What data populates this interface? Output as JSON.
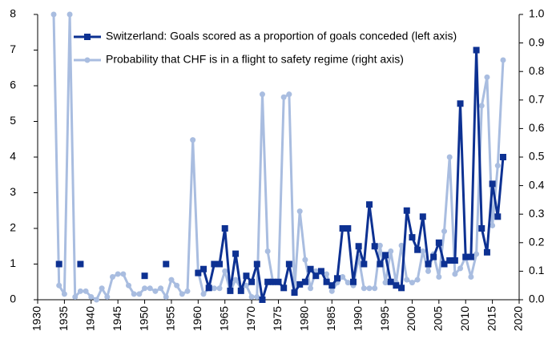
{
  "chart_data": {
    "type": "line",
    "x": [
      1933,
      1934,
      1935,
      1936,
      1937,
      1938,
      1939,
      1940,
      1941,
      1942,
      1943,
      1944,
      1945,
      1946,
      1947,
      1948,
      1949,
      1950,
      1951,
      1952,
      1953,
      1954,
      1955,
      1956,
      1957,
      1958,
      1959,
      1960,
      1961,
      1962,
      1963,
      1964,
      1965,
      1966,
      1967,
      1968,
      1969,
      1970,
      1971,
      1972,
      1973,
      1974,
      1975,
      1976,
      1977,
      1978,
      1979,
      1980,
      1981,
      1982,
      1983,
      1984,
      1985,
      1986,
      1987,
      1988,
      1989,
      1990,
      1991,
      1992,
      1993,
      1994,
      1995,
      1996,
      1997,
      1998,
      1999,
      2000,
      2001,
      2002,
      2003,
      2004,
      2005,
      2006,
      2007,
      2008,
      2009,
      2010,
      2011,
      2012,
      2013,
      2014,
      2015,
      2016,
      2017
    ],
    "series": [
      {
        "name": "Switzerland: Goals scored as a proportion of goals conceded (left axis)",
        "color": "#0d3192",
        "marker": "square",
        "values": [
          null,
          1,
          null,
          null,
          null,
          1,
          null,
          null,
          null,
          null,
          null,
          null,
          null,
          null,
          null,
          null,
          null,
          0.67,
          null,
          null,
          null,
          1,
          null,
          null,
          null,
          null,
          null,
          0.75,
          0.86,
          0.33,
          1,
          1,
          2,
          0.25,
          1.29,
          0.25,
          0.67,
          0.5,
          1,
          0,
          0.5,
          0.5,
          0.5,
          0.33,
          1,
          0.2,
          0.43,
          0.5,
          0.86,
          0.67,
          0.8,
          0.5,
          0.4,
          0.6,
          2,
          2,
          0.5,
          1.5,
          1,
          2.67,
          1.5,
          1,
          1.25,
          0.5,
          0.4,
          0.33,
          2.5,
          1.75,
          1.4,
          2.33,
          1,
          1.2,
          1.6,
          1,
          1.1,
          1.1,
          5.5,
          1.2,
          1.2,
          7,
          2,
          1.33,
          3.25,
          2.33,
          4
        ]
      },
      {
        "name": "Probability that CHF is in a flight to safety regime (right axis)",
        "color": "#a9bde0",
        "marker": "circle",
        "axis": "y2",
        "values": [
          1.0,
          0.05,
          0.02,
          1.0,
          0.01,
          0.03,
          0.03,
          0.01,
          0,
          0.04,
          0.01,
          0.08,
          0.09,
          0.09,
          0.05,
          0.02,
          0.02,
          0.04,
          0.04,
          0.03,
          0.04,
          0.01,
          0.07,
          0.05,
          0.02,
          0.03,
          0.56,
          0.1,
          0.02,
          0.04,
          0.04,
          0.04,
          0.1,
          0.03,
          0.07,
          0.04,
          0.05,
          0.01,
          0.01,
          0.72,
          0.17,
          0.06,
          0.06,
          0.71,
          0.72,
          0.03,
          0.31,
          0.14,
          0.04,
          0.1,
          0.1,
          0.09,
          0.03,
          0.06,
          0.08,
          0.06,
          0.05,
          0.15,
          0.04,
          0.04,
          0.04,
          0.19,
          0.06,
          0.17,
          0.06,
          0.19,
          0.07,
          0.06,
          0.07,
          0.17,
          0.1,
          0.16,
          0.08,
          0.24,
          0.5,
          0.09,
          0.11,
          0.15,
          0.08,
          0.16,
          0.68,
          0.78,
          0.26,
          0.47,
          0.84
        ]
      }
    ],
    "xlim": [
      1930,
      2020
    ],
    "xticks": [
      1930,
      1935,
      1940,
      1945,
      1950,
      1955,
      1960,
      1965,
      1970,
      1975,
      1980,
      1985,
      1990,
      1995,
      2000,
      2005,
      2010,
      2015,
      2020
    ],
    "ylim": [
      0,
      8
    ],
    "yticks": [
      0,
      1,
      2,
      3,
      4,
      5,
      6,
      7,
      8
    ],
    "y2lim": [
      0,
      1
    ],
    "y2ticks": [
      {
        "value": 0,
        "label": "0.0"
      },
      0.1,
      0.2,
      0.3,
      0.4,
      0.5,
      0.6,
      0.7,
      0.8,
      0.9,
      {
        "value": 1,
        "label": "1.0"
      }
    ],
    "legend": "upper left",
    "grid": false
  }
}
